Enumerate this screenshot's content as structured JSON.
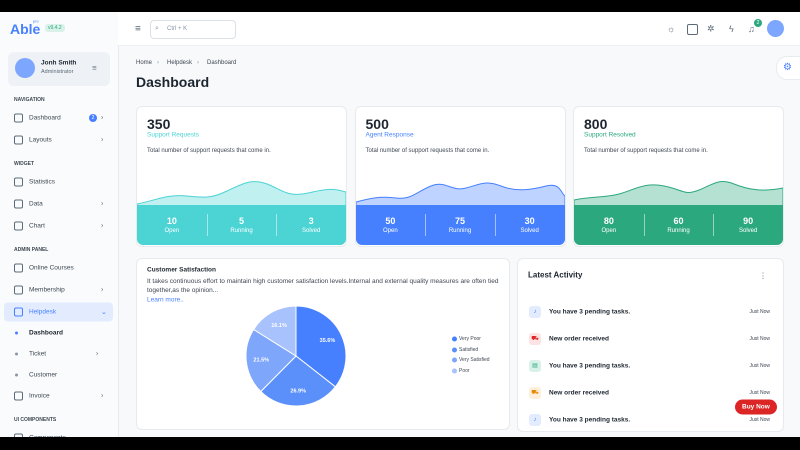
{
  "brand": {
    "name": "Able",
    "tag": "pro",
    "version": "v9.4.2"
  },
  "header": {
    "search_placeholder": "Ctrl + K",
    "notification_count": 2
  },
  "user": {
    "name": "Jonh Smith",
    "role": "Administrator"
  },
  "sidebar": {
    "sections": [
      {
        "title": "NAVIGATION",
        "items": [
          {
            "label": "Dashboard",
            "badge": 2
          },
          {
            "label": "Layouts"
          }
        ]
      },
      {
        "title": "WIDGET",
        "items": [
          {
            "label": "Statistics"
          },
          {
            "label": "Data"
          },
          {
            "label": "Chart"
          }
        ]
      },
      {
        "title": "ADMIN PANEL",
        "items": [
          {
            "label": "Online Courses"
          },
          {
            "label": "Membership"
          },
          {
            "label": "Helpdesk",
            "children": [
              "Dashboard",
              "Ticket",
              "Customer"
            ]
          },
          {
            "label": "Invoice"
          }
        ]
      },
      {
        "title": "UI COMPONENTS",
        "items": [
          {
            "label": "Components"
          }
        ]
      }
    ]
  },
  "breadcrumb": [
    "Home",
    "Helpdesk",
    "Dashboard"
  ],
  "page_title": "Dashboard",
  "cards": [
    {
      "value": 350,
      "label": "Support Requests",
      "description": "Total number of support requests that come in.",
      "color": "#4cd3d4",
      "stats": [
        {
          "value": 10,
          "label": "Open"
        },
        {
          "value": 5,
          "label": "Running"
        },
        {
          "value": 3,
          "label": "Solved"
        }
      ]
    },
    {
      "value": 500,
      "label": "Agent Response",
      "description": "Total number of support requests that come in.",
      "color": "#4680ff",
      "stats": [
        {
          "value": 50,
          "label": "Open"
        },
        {
          "value": 75,
          "label": "Running"
        },
        {
          "value": 30,
          "label": "Solved"
        }
      ]
    },
    {
      "value": 800,
      "label": "Support Resolved",
      "description": "Total number of support requests that come in.",
      "color": "#2ca87f",
      "stats": [
        {
          "value": 80,
          "label": "Open"
        },
        {
          "value": 60,
          "label": "Running"
        },
        {
          "value": 90,
          "label": "Solved"
        }
      ]
    }
  ],
  "customer_satisfaction": {
    "text": "It takes continuous effort to maintain high customer satisfaction levels.Internal and external quality measures are often tied together,as the opinion...",
    "link": "Learn more.."
  },
  "chart_data": {
    "type": "pie",
    "title": "Customer Satisfaction",
    "categories": [
      "Very Poor",
      "Satisfied",
      "Very Satisfied",
      "Poor"
    ],
    "values": [
      35.6,
      26.9,
      21.5,
      16.1
    ],
    "value_labels": [
      "35.6%",
      "26.9%",
      "21.5%",
      "16.1%"
    ],
    "colors": [
      "#4680ff",
      "#5b8ff9",
      "#7ea6fb",
      "#a7c2fd"
    ]
  },
  "latest_activity": {
    "title": "Latest Activity",
    "items": [
      {
        "text": "You have 3 pending tasks.",
        "time": "Just Now"
      },
      {
        "text": "New order received",
        "time": "Just Now"
      },
      {
        "text": "You have 3 pending tasks.",
        "time": "Just Now"
      },
      {
        "text": "New order received",
        "time": "Just Now"
      },
      {
        "text": "You have 3 pending tasks.",
        "time": "Just Now"
      }
    ]
  },
  "buy_now": "Buy Now"
}
